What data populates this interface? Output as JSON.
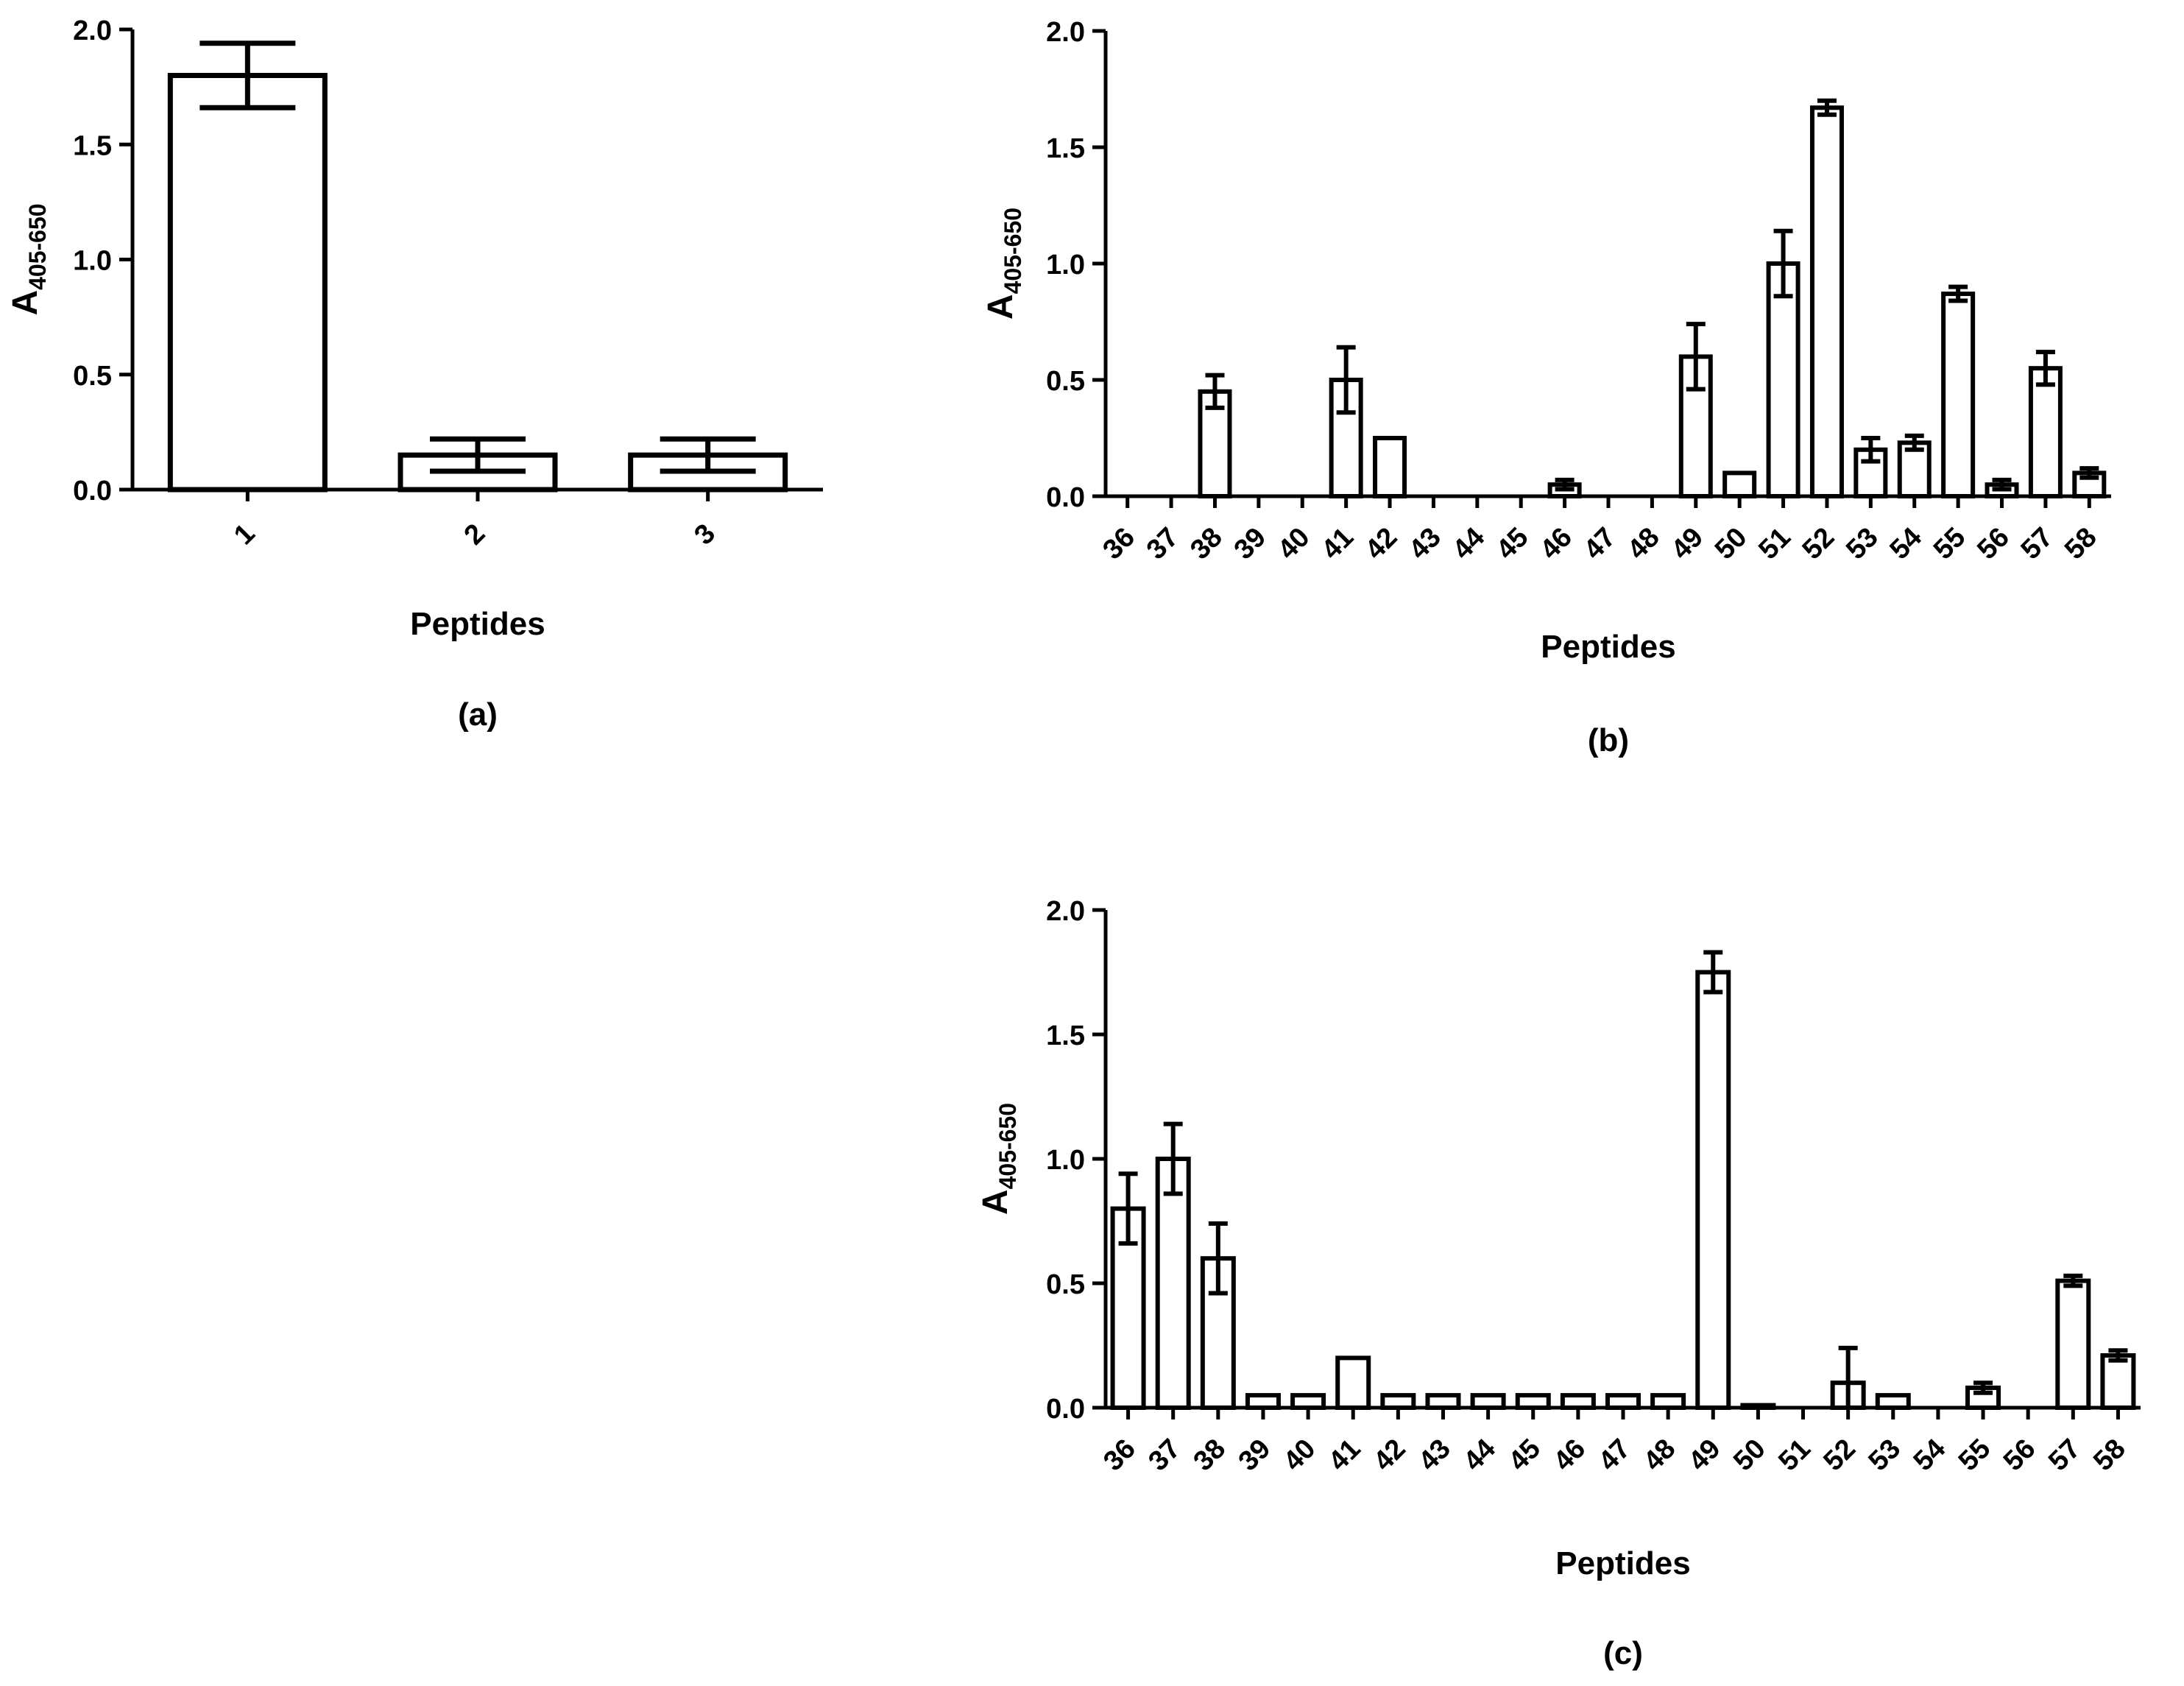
{
  "chart_data": [
    {
      "type": "bar",
      "panel_label": "(a)",
      "xlabel": "Peptides",
      "ylabel_main": "A",
      "ylabel_sub": "405-650",
      "ylim": [
        0,
        2.0
      ],
      "yticks": [
        "0.0",
        "0.5",
        "1.0",
        "1.5",
        "2.0"
      ],
      "categories": [
        "1",
        "2",
        "3"
      ],
      "values": [
        1.8,
        0.15,
        0.15
      ],
      "errors": [
        0.14,
        0.07,
        0.07
      ],
      "error_style": "both"
    },
    {
      "type": "bar",
      "panel_label": "(b)",
      "xlabel": "Peptides",
      "ylabel_main": "A",
      "ylabel_sub": "405-650",
      "ylim": [
        0,
        2.0
      ],
      "yticks": [
        "0.0",
        "0.5",
        "1.0",
        "1.5",
        "2.0"
      ],
      "categories": [
        "36",
        "37",
        "38",
        "39",
        "40",
        "41",
        "42",
        "43",
        "44",
        "45",
        "46",
        "47",
        "48",
        "49",
        "50",
        "51",
        "52",
        "53",
        "54",
        "55",
        "56",
        "57",
        "58"
      ],
      "values": [
        0,
        0,
        0.45,
        0,
        0,
        0.5,
        0.25,
        0,
        0,
        0,
        0.05,
        0,
        0,
        0.6,
        0.1,
        1.0,
        1.67,
        0.2,
        0.23,
        0.87,
        0.05,
        0.55,
        0.1
      ],
      "errors": [
        0,
        0,
        0.07,
        0,
        0,
        0.14,
        0,
        0,
        0,
        0,
        0.02,
        0,
        0,
        0.14,
        0,
        0.14,
        0.03,
        0.05,
        0.03,
        0.03,
        0.02,
        0.07,
        0.02
      ],
      "error_style": "both"
    },
    {
      "type": "bar",
      "panel_label": "(c)",
      "xlabel": "Peptides",
      "ylabel_main": "A",
      "ylabel_sub": "405-650",
      "ylim": [
        0,
        2.0
      ],
      "yticks": [
        "0.0",
        "0.5",
        "1.0",
        "1.5",
        "2.0"
      ],
      "categories": [
        "36",
        "37",
        "38",
        "39",
        "40",
        "41",
        "42",
        "43",
        "44",
        "45",
        "46",
        "47",
        "48",
        "49",
        "50",
        "51",
        "52",
        "53",
        "54",
        "55",
        "56",
        "57",
        "58"
      ],
      "values": [
        0.8,
        1.0,
        0.6,
        0.05,
        0.05,
        0.2,
        0.05,
        0.05,
        0.05,
        0.05,
        0.05,
        0.05,
        0.05,
        1.75,
        0.01,
        0,
        0.1,
        0.05,
        0,
        0.08,
        0,
        0.51,
        0.21
      ],
      "errors": [
        0.14,
        0.14,
        0.14,
        0,
        0,
        0,
        0,
        0,
        0,
        0,
        0,
        0,
        0,
        0.08,
        0,
        0,
        0.14,
        0,
        0,
        0.02,
        0,
        0.02,
        0.02
      ],
      "error_style": "both"
    }
  ]
}
